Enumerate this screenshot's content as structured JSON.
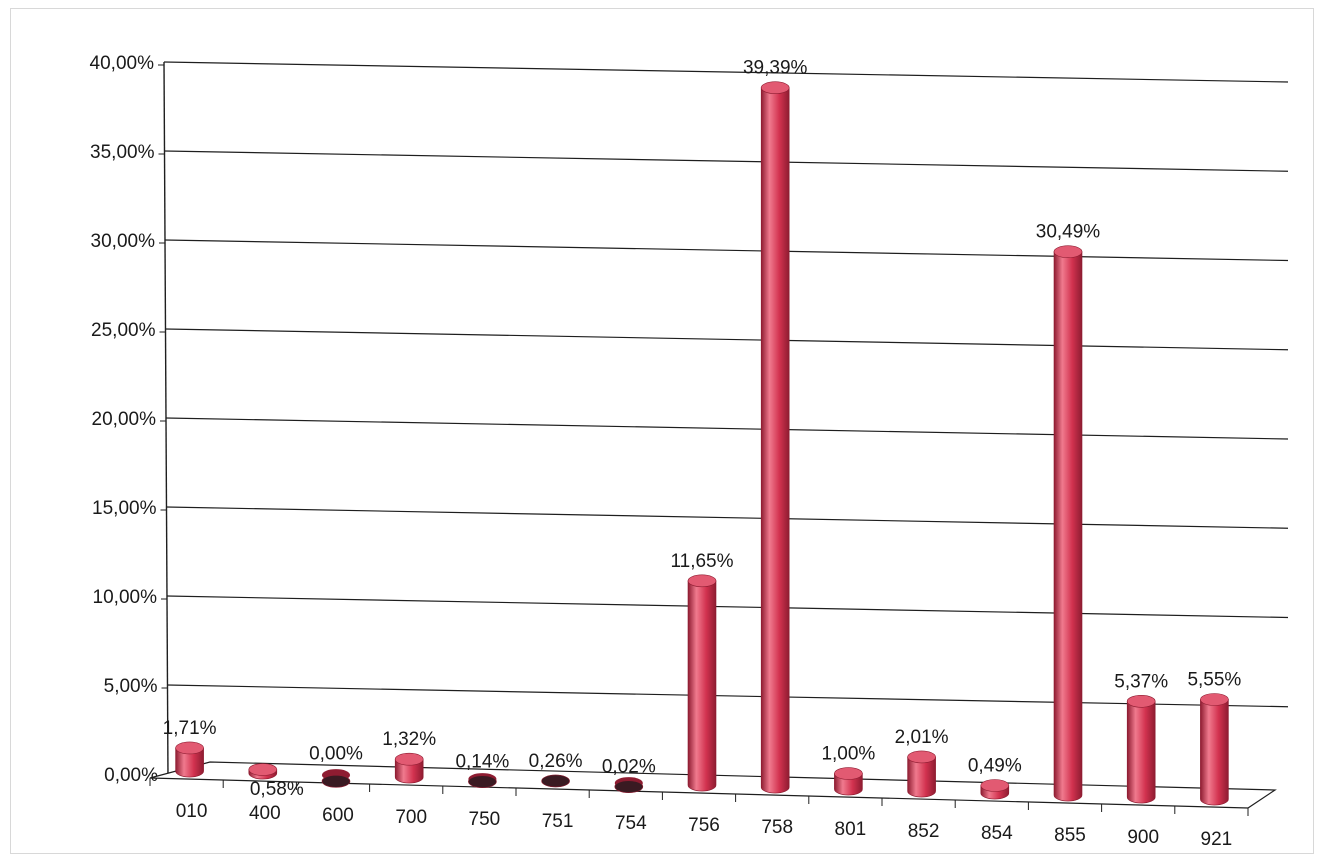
{
  "chart_data": {
    "type": "bar",
    "title": "",
    "xlabel": "",
    "ylabel": "",
    "ylim": [
      0,
      40
    ],
    "y_ticks": [
      "0,00%",
      "5,00%",
      "10,00%",
      "15,00%",
      "20,00%",
      "25,00%",
      "30,00%",
      "35,00%",
      "40,00%"
    ],
    "categories": [
      "010",
      "400",
      "600",
      "700",
      "750",
      "751",
      "754",
      "756",
      "758",
      "801",
      "852",
      "854",
      "855",
      "900",
      "921"
    ],
    "values": [
      1.71,
      0.58,
      0.0,
      1.32,
      0.14,
      0.26,
      0.02,
      11.65,
      39.39,
      1.0,
      2.01,
      0.49,
      30.49,
      5.37,
      5.55
    ],
    "data_labels": [
      "1,71%",
      "0,58%",
      "0,00%",
      "1,32%",
      "0,14%",
      "0,26%",
      "0,02%",
      "11,65%",
      "39,39%",
      "1,00%",
      "2,01%",
      "0,49%",
      "30,49%",
      "5,37%",
      "5,55%"
    ],
    "grid": true,
    "legend": "none",
    "style": "3d-cylinder",
    "colors": {
      "bar": "#d2324f",
      "bar_dark": "#8e1c31",
      "bar_light": "#f07a8e",
      "bar_top": "#e25a72",
      "grid": "#1e1e1e",
      "axis": "#1e1e1e"
    }
  }
}
